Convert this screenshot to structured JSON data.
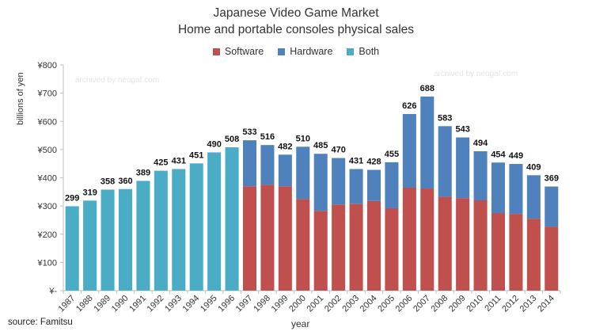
{
  "chart_data": {
    "type": "bar",
    "stacked": true,
    "title": "Japanese Video Game Market",
    "subtitle": "Home and portable consoles physical sales",
    "xlabel": "year",
    "ylabel": "billions of yen",
    "ylim": [
      0,
      800
    ],
    "yticks": [
      0,
      100,
      200,
      300,
      400,
      500,
      600,
      700,
      800
    ],
    "ytick_labels": [
      "¥-",
      "¥100",
      "¥200",
      "¥300",
      "¥400",
      "¥500",
      "¥600",
      "¥700",
      "¥800"
    ],
    "grid": false,
    "legend_position": "top-center",
    "categories": [
      "1987",
      "1988",
      "1989",
      "1990",
      "1991",
      "1992",
      "1993",
      "1994",
      "1995",
      "1996",
      "1997",
      "1998",
      "1999",
      "2000",
      "2001",
      "2002",
      "2003",
      "2004",
      "2005",
      "2006",
      "2007",
      "2008",
      "2009",
      "2010",
      "2011",
      "2012",
      "2013",
      "2014"
    ],
    "series": [
      {
        "name": "Software",
        "color": "#c0504d",
        "values": [
          null,
          null,
          null,
          null,
          null,
          null,
          null,
          null,
          null,
          null,
          370,
          375,
          370,
          325,
          283,
          305,
          308,
          318,
          292,
          365,
          362,
          333,
          328,
          320,
          275,
          272,
          255,
          227
        ]
      },
      {
        "name": "Hardware",
        "color": "#4f81bd",
        "values": [
          null,
          null,
          null,
          null,
          null,
          null,
          null,
          null,
          null,
          null,
          163,
          141,
          112,
          185,
          202,
          165,
          123,
          110,
          163,
          261,
          326,
          250,
          215,
          174,
          179,
          177,
          154,
          142
        ]
      },
      {
        "name": "Both",
        "color": "#4bacc6",
        "values": [
          299,
          319,
          358,
          360,
          389,
          425,
          431,
          451,
          490,
          508,
          null,
          null,
          null,
          null,
          null,
          null,
          null,
          null,
          null,
          null,
          null,
          null,
          null,
          null,
          null,
          null,
          null,
          null
        ]
      }
    ],
    "totals": [
      299,
      319,
      358,
      360,
      389,
      425,
      431,
      451,
      490,
      508,
      533,
      516,
      482,
      510,
      485,
      470,
      431,
      428,
      455,
      626,
      688,
      583,
      543,
      494,
      454,
      449,
      409,
      369
    ]
  },
  "source": "source: Famitsu",
  "watermark": "archived by neogaf.com",
  "colors": {
    "text": "#333333",
    "axis": "#bfbfbf"
  }
}
